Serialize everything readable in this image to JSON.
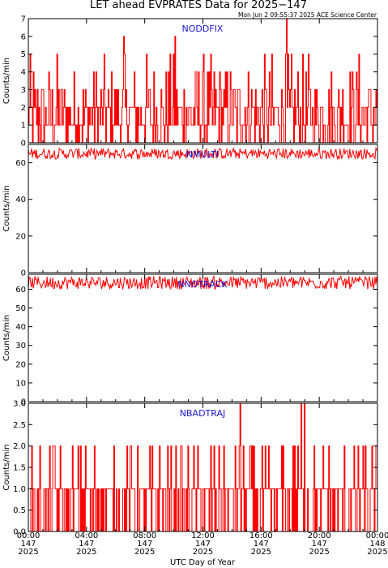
{
  "header": {
    "title": "LET ahead EVPRATES Data for 2025−147",
    "timestamp": "Mon Jun  2 09:55:37 2025 ACE Science Center"
  },
  "chart_data": {
    "type": "line",
    "x_axis": {
      "label": "UTC Day of Year",
      "ticks": [
        {
          "time": "00:00",
          "doy": "147",
          "year": "2025"
        },
        {
          "time": "04:00",
          "doy": "147",
          "year": "2025"
        },
        {
          "time": "08:00",
          "doy": "147",
          "year": "2025"
        },
        {
          "time": "12:00",
          "doy": "147",
          "year": "2025"
        },
        {
          "time": "16:00",
          "doy": "147",
          "year": "2025"
        },
        {
          "time": "20:00",
          "doy": "147",
          "year": "2025"
        },
        {
          "time": "00:00",
          "doy": "148",
          "year": "2025"
        }
      ]
    },
    "panels": [
      {
        "name": "NODDFIX",
        "ylabel": "Counts/min",
        "ylim": [
          0,
          7
        ],
        "ytick_labels": [
          "0",
          "1",
          "2",
          "3",
          "4",
          "5",
          "6",
          "7"
        ],
        "typical_range": [
          0,
          4
        ],
        "peak_values": [
          {
            "hour": 6.6,
            "value": 6
          },
          {
            "hour": 10.1,
            "value": 6
          },
          {
            "hour": 17.8,
            "value": 7
          }
        ]
      },
      {
        "name": "NMULTI",
        "ylabel": "Counts/min",
        "ylim": [
          0,
          70
        ],
        "ytick_labels": [
          "0",
          "20",
          "40",
          "60"
        ],
        "typical_range": [
          62,
          68
        ]
      },
      {
        "name": "NNOTRACK",
        "ylabel": "Counts/min",
        "ylim": [
          0,
          68
        ],
        "ytick_labels": [
          "0",
          "10",
          "20",
          "30",
          "40",
          "50",
          "60"
        ],
        "typical_range": [
          60,
          67
        ]
      },
      {
        "name": "NBADTRAJ",
        "ylabel": "Counts/min",
        "ylim": [
          0,
          3.0
        ],
        "ytick_labels": [
          "0.0",
          "0.5",
          "1.0",
          "1.5",
          "2.0",
          "2.5",
          "3.0"
        ],
        "typical_range": [
          0,
          2
        ],
        "peak_values": [
          {
            "hour": 14.6,
            "value": 3
          },
          {
            "hour": 18.8,
            "value": 3
          },
          {
            "hour": 19.0,
            "value": 3
          }
        ]
      }
    ]
  }
}
